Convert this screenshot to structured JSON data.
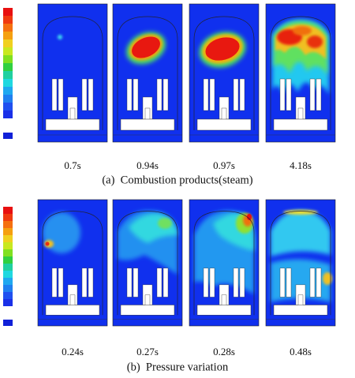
{
  "panels": [
    {
      "times": [
        "0.7s",
        "0.94s",
        "0.97s",
        "4.18s"
      ],
      "caption": "(a)  Combustion products(steam)"
    },
    {
      "times": [
        "0.24s",
        "0.27s",
        "0.28s",
        "0.48s"
      ],
      "caption": "(b)  Pressure variation"
    }
  ]
}
